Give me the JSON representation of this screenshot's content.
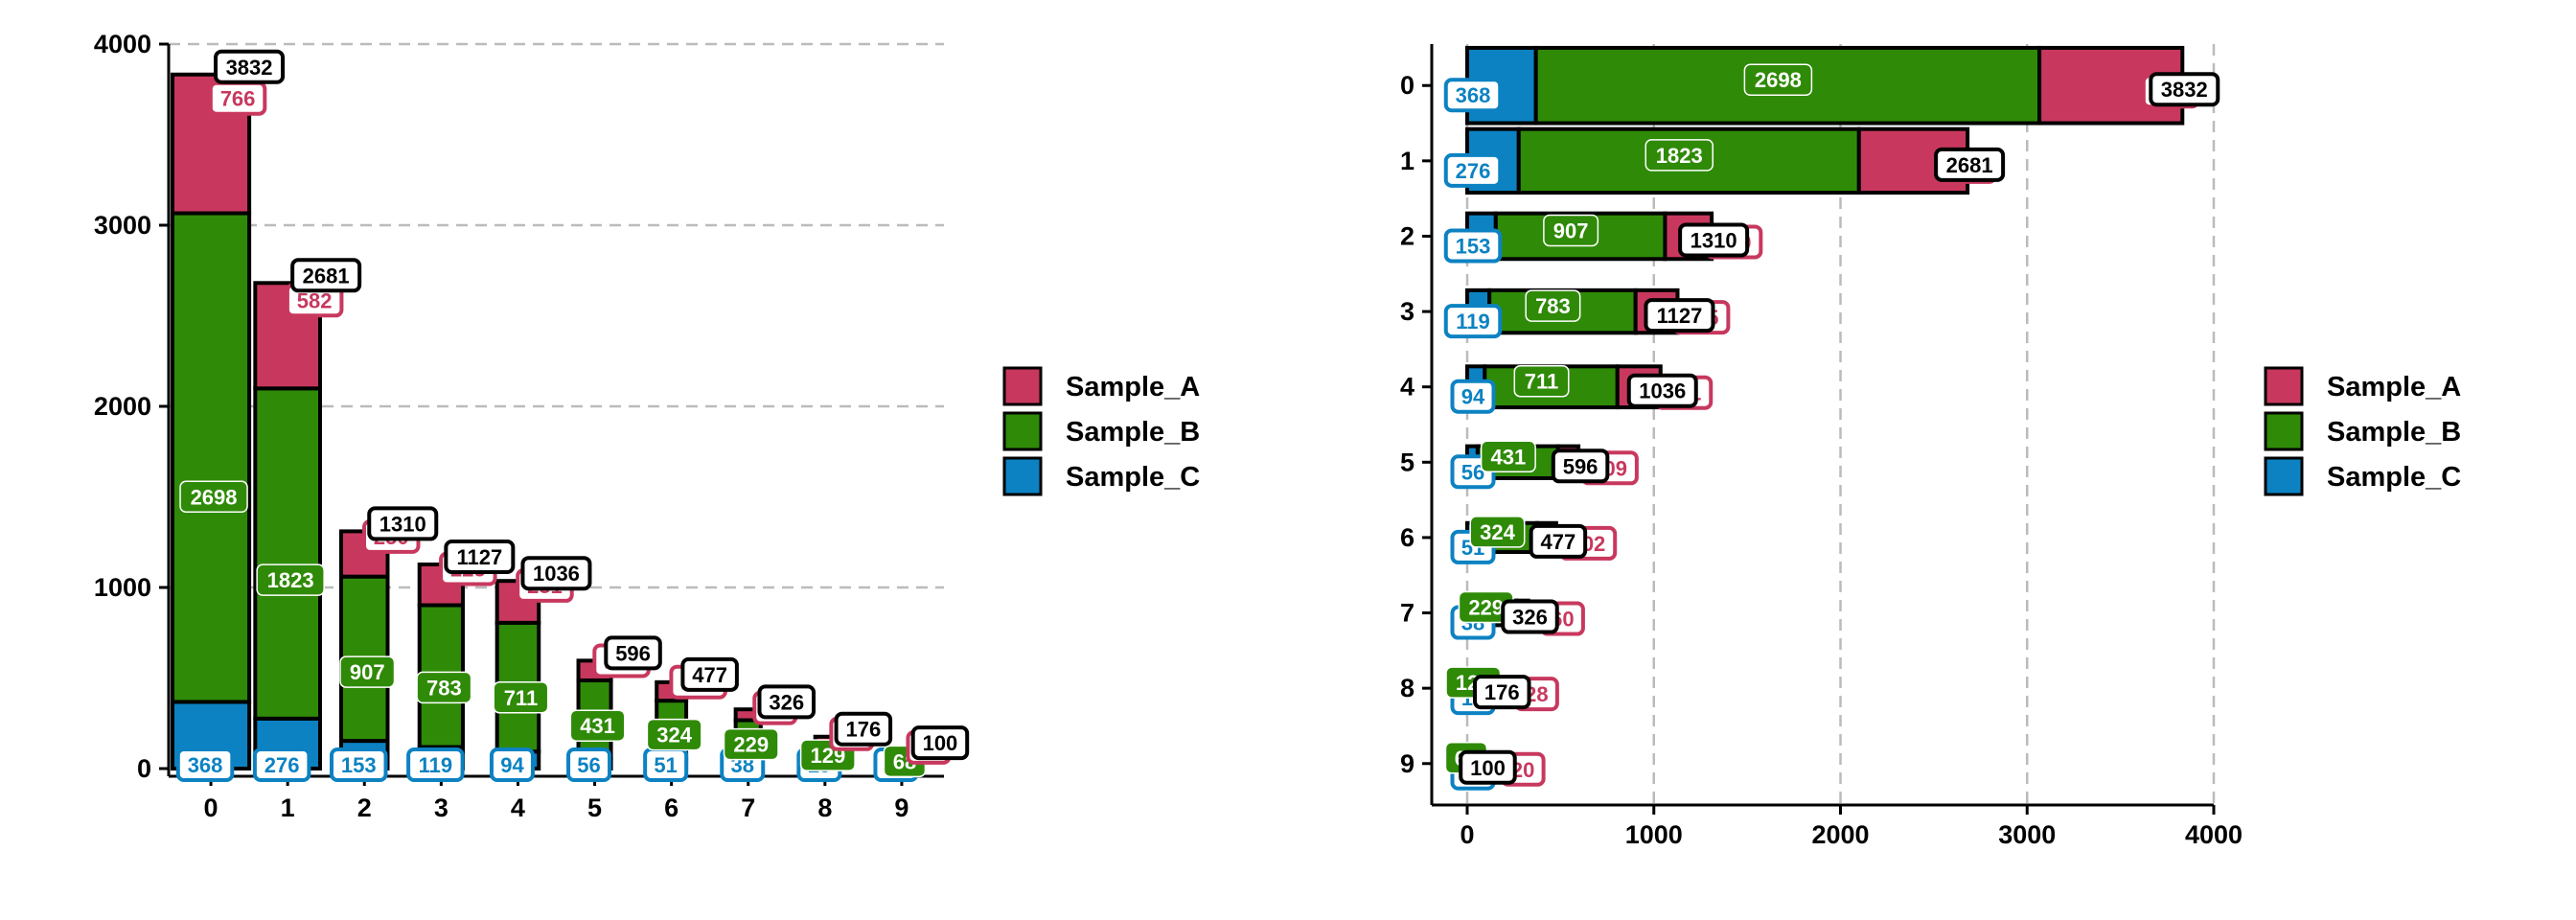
{
  "colors": {
    "Sample_A": "#c8385e",
    "Sample_B": "#2f8a07",
    "Sample_C": "#0c82c2",
    "total": "#000000",
    "grid": "#bbbbbb"
  },
  "legend": {
    "items": [
      {
        "name": "Sample_A",
        "color": "#c8385e"
      },
      {
        "name": "Sample_B",
        "color": "#2f8a07"
      },
      {
        "name": "Sample_C",
        "color": "#0c82c2"
      }
    ]
  },
  "chart_data": [
    {
      "type": "bar",
      "subtype": "stacked-mekko",
      "orientation": "vertical",
      "categories": [
        "0",
        "1",
        "2",
        "3",
        "4",
        "5",
        "6",
        "7",
        "8",
        "9"
      ],
      "series": [
        {
          "name": "Sample_A",
          "values": [
            766,
            582,
            250,
            225,
            231,
            109,
            102,
            60,
            28,
            20
          ]
        },
        {
          "name": "Sample_B",
          "values": [
            2698,
            1823,
            907,
            783,
            711,
            431,
            324,
            229,
            129,
            68
          ]
        },
        {
          "name": "Sample_C",
          "values": [
            368,
            276,
            153,
            119,
            94,
            56,
            51,
            38,
            19,
            12
          ]
        }
      ],
      "totals": [
        3832,
        2681,
        1310,
        1127,
        1036,
        596,
        477,
        326,
        176,
        100
      ],
      "yticks": [
        0,
        1000,
        2000,
        3000,
        4000
      ],
      "ylim": [
        0,
        4000
      ],
      "grid": "horizontal dashed"
    },
    {
      "type": "bar",
      "subtype": "stacked-mekko",
      "orientation": "horizontal",
      "categories": [
        "0",
        "1",
        "2",
        "3",
        "4",
        "5",
        "6",
        "7",
        "8",
        "9"
      ],
      "series": [
        {
          "name": "Sample_A",
          "values": [
            766,
            582,
            250,
            225,
            231,
            109,
            102,
            60,
            28,
            20
          ]
        },
        {
          "name": "Sample_B",
          "values": [
            2698,
            1823,
            907,
            783,
            711,
            431,
            324,
            229,
            129,
            68
          ]
        },
        {
          "name": "Sample_C",
          "values": [
            368,
            276,
            153,
            119,
            94,
            56,
            51,
            38,
            19,
            12
          ]
        }
      ],
      "totals": [
        3832,
        2681,
        1310,
        1127,
        1036,
        596,
        477,
        326,
        176,
        100
      ],
      "xticks": [
        0,
        1000,
        2000,
        3000,
        4000
      ],
      "xlim": [
        0,
        4000
      ],
      "grid": "vertical dashed"
    }
  ]
}
